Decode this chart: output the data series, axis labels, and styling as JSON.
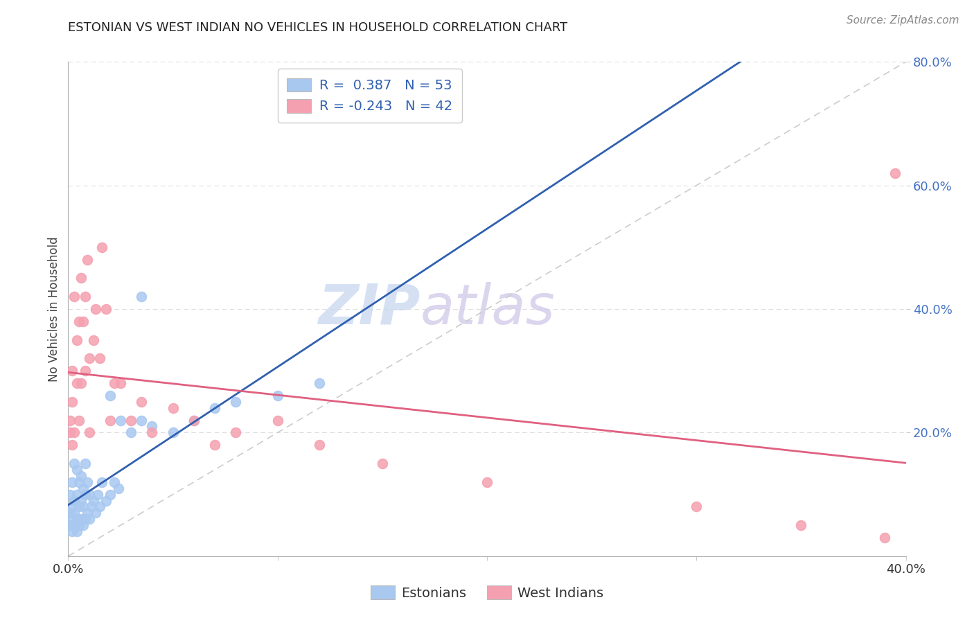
{
  "title": "ESTONIAN VS WEST INDIAN NO VEHICLES IN HOUSEHOLD CORRELATION CHART",
  "source": "Source: ZipAtlas.com",
  "ylabel_label": "No Vehicles in Household",
  "ytick_labels": [
    "20.0%",
    "40.0%",
    "60.0%",
    "80.0%"
  ],
  "ytick_values": [
    0.2,
    0.4,
    0.6,
    0.8
  ],
  "watermark_zip": "ZIP",
  "watermark_atlas": "atlas",
  "legend1_label": "R =  0.387   N = 53",
  "legend2_label": "R = -0.243   N = 42",
  "estonian_color": "#a8c8f0",
  "west_indian_color": "#f5a0b0",
  "estonian_line_color": "#3060b0",
  "west_indian_line_color": "#e06080",
  "diag_line_color": "#cccccc",
  "R_estonian": 0.387,
  "N_estonian": 53,
  "R_west_indian": -0.243,
  "N_west_indian": 42,
  "xlim": [
    0.0,
    0.4
  ],
  "ylim": [
    0.0,
    0.8
  ],
  "estonian_x": [
    0.001,
    0.001,
    0.001,
    0.002,
    0.002,
    0.002,
    0.002,
    0.003,
    0.003,
    0.003,
    0.003,
    0.004,
    0.004,
    0.004,
    0.004,
    0.005,
    0.005,
    0.005,
    0.006,
    0.006,
    0.006,
    0.007,
    0.007,
    0.007,
    0.008,
    0.008,
    0.008,
    0.009,
    0.009,
    0.01,
    0.01,
    0.011,
    0.012,
    0.013,
    0.014,
    0.015,
    0.016,
    0.018,
    0.02,
    0.022,
    0.024,
    0.025,
    0.03,
    0.035,
    0.04,
    0.05,
    0.06,
    0.07,
    0.08,
    0.1,
    0.12,
    0.02,
    0.035
  ],
  "estonian_y": [
    0.05,
    0.07,
    0.1,
    0.04,
    0.06,
    0.08,
    0.12,
    0.05,
    0.07,
    0.09,
    0.15,
    0.04,
    0.06,
    0.1,
    0.14,
    0.05,
    0.08,
    0.12,
    0.06,
    0.09,
    0.13,
    0.05,
    0.08,
    0.11,
    0.06,
    0.1,
    0.15,
    0.07,
    0.12,
    0.06,
    0.1,
    0.08,
    0.09,
    0.07,
    0.1,
    0.08,
    0.12,
    0.09,
    0.1,
    0.12,
    0.11,
    0.22,
    0.2,
    0.22,
    0.21,
    0.2,
    0.22,
    0.24,
    0.25,
    0.26,
    0.28,
    0.26,
    0.42
  ],
  "west_indian_x": [
    0.001,
    0.001,
    0.002,
    0.002,
    0.002,
    0.003,
    0.003,
    0.004,
    0.004,
    0.005,
    0.005,
    0.006,
    0.006,
    0.007,
    0.008,
    0.008,
    0.009,
    0.01,
    0.01,
    0.012,
    0.013,
    0.015,
    0.016,
    0.018,
    0.02,
    0.022,
    0.025,
    0.03,
    0.035,
    0.04,
    0.05,
    0.06,
    0.07,
    0.08,
    0.1,
    0.12,
    0.15,
    0.2,
    0.3,
    0.35,
    0.39,
    0.395
  ],
  "west_indian_y": [
    0.2,
    0.22,
    0.18,
    0.25,
    0.3,
    0.2,
    0.42,
    0.28,
    0.35,
    0.22,
    0.38,
    0.28,
    0.45,
    0.38,
    0.3,
    0.42,
    0.48,
    0.2,
    0.32,
    0.35,
    0.4,
    0.32,
    0.5,
    0.4,
    0.22,
    0.28,
    0.28,
    0.22,
    0.25,
    0.2,
    0.24,
    0.22,
    0.18,
    0.2,
    0.22,
    0.18,
    0.15,
    0.12,
    0.08,
    0.05,
    0.03,
    0.62
  ]
}
